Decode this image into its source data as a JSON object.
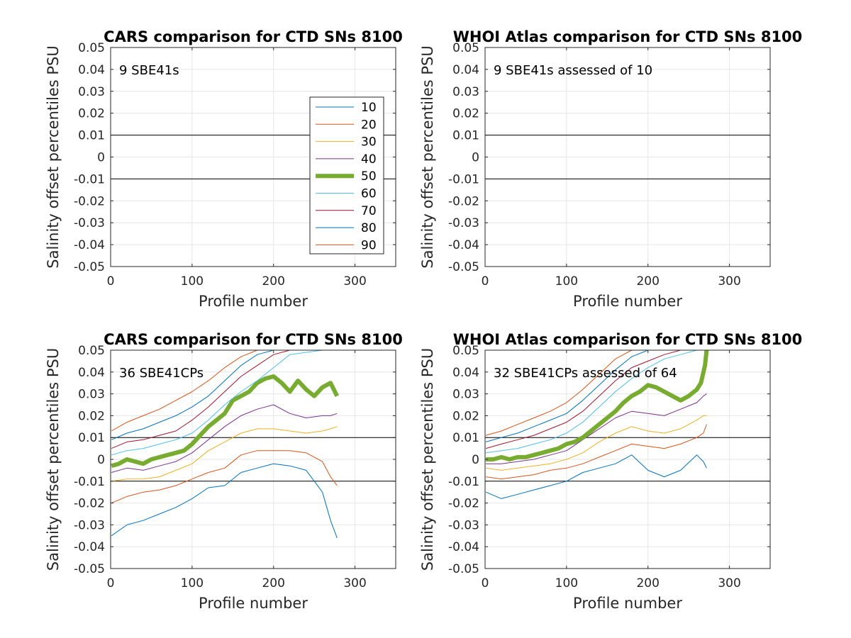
{
  "chart_data": [
    {
      "type": "line",
      "title": "CARS comparison for CTD SNs 8100",
      "xlabel": "Profile number",
      "ylabel": "Salinity offset percentiles PSU",
      "xlim": [
        0,
        350
      ],
      "ylim": [
        -0.05,
        0.05
      ],
      "xticks": [
        "0",
        "100",
        "200",
        "300"
      ],
      "yticks": [
        "-0.05",
        "-0.04",
        "-0.03",
        "-0.02",
        "-0.01",
        "0",
        "0.01",
        "0.02",
        "0.03",
        "0.04",
        "0.05"
      ],
      "grid": true,
      "reference_lines": [
        0.01,
        -0.01
      ],
      "annotation": "9 SBE41s",
      "legend": {
        "placement": "right",
        "entries": [
          "10",
          "20",
          "30",
          "40",
          "50",
          "60",
          "70",
          "80",
          "90"
        ]
      },
      "series": []
    },
    {
      "type": "line",
      "title": "WHOI Atlas comparison for CTD SNs 8100",
      "xlabel": "Profile number",
      "ylabel": "Salinity offset percentiles PSU",
      "xlim": [
        0,
        350
      ],
      "ylim": [
        -0.05,
        0.05
      ],
      "xticks": [
        "0",
        "100",
        "200",
        "300"
      ],
      "yticks": [
        "-0.05",
        "-0.04",
        "-0.03",
        "-0.02",
        "-0.01",
        "0",
        "0.01",
        "0.02",
        "0.03",
        "0.04",
        "0.05"
      ],
      "grid": true,
      "reference_lines": [
        0.01,
        -0.01
      ],
      "annotation": "9 SBE41s assessed of 10",
      "series": []
    },
    {
      "type": "line",
      "title": "CARS comparison for CTD SNs 8100",
      "xlabel": "Profile number",
      "ylabel": "Salinity offset percentiles PSU",
      "xlim": [
        0,
        350
      ],
      "ylim": [
        -0.05,
        0.05
      ],
      "xticks": [
        "0",
        "100",
        "200",
        "300"
      ],
      "yticks": [
        "-0.05",
        "-0.04",
        "-0.03",
        "-0.02",
        "-0.01",
        "0",
        "0.01",
        "0.02",
        "0.03",
        "0.04",
        "0.05"
      ],
      "grid": true,
      "reference_lines": [
        0.01,
        -0.01
      ],
      "annotation": "36 SBE41CPs",
      "series": [
        {
          "name": "10",
          "color": "#0072BD",
          "x": [
            1,
            20,
            40,
            60,
            80,
            100,
            120,
            140,
            160,
            180,
            200,
            220,
            240,
            260,
            270,
            278
          ],
          "values": [
            -0.035,
            -0.03,
            -0.028,
            -0.025,
            -0.022,
            -0.018,
            -0.013,
            -0.012,
            -0.006,
            -0.004,
            -0.002,
            -0.003,
            -0.005,
            -0.015,
            -0.028,
            -0.036
          ]
        },
        {
          "name": "20",
          "color": "#D95319",
          "x": [
            1,
            20,
            40,
            60,
            80,
            100,
            120,
            140,
            160,
            180,
            200,
            220,
            240,
            260,
            270,
            278
          ],
          "values": [
            -0.02,
            -0.017,
            -0.015,
            -0.014,
            -0.012,
            -0.009,
            -0.006,
            -0.004,
            0.002,
            0.004,
            0.004,
            0.004,
            0.003,
            -0.001,
            -0.008,
            -0.012
          ]
        },
        {
          "name": "30",
          "color": "#EDB120",
          "x": [
            1,
            20,
            40,
            60,
            80,
            100,
            120,
            140,
            160,
            180,
            200,
            220,
            240,
            260,
            270,
            278
          ],
          "values": [
            -0.01,
            -0.009,
            -0.009,
            -0.008,
            -0.005,
            -0.002,
            0.004,
            0.008,
            0.012,
            0.014,
            0.014,
            0.013,
            0.012,
            0.013,
            0.014,
            0.015
          ]
        },
        {
          "name": "40",
          "color": "#7E2F8E",
          "x": [
            1,
            20,
            40,
            60,
            80,
            100,
            120,
            140,
            160,
            180,
            200,
            220,
            240,
            260,
            270,
            278
          ],
          "values": [
            -0.006,
            -0.004,
            -0.005,
            -0.003,
            -0.001,
            0.003,
            0.009,
            0.015,
            0.02,
            0.023,
            0.025,
            0.021,
            0.019,
            0.02,
            0.02,
            0.021
          ]
        },
        {
          "name": "50",
          "color": "#77AC30",
          "x": [
            1,
            10,
            20,
            30,
            40,
            50,
            60,
            70,
            80,
            90,
            100,
            110,
            120,
            130,
            140,
            150,
            160,
            170,
            180,
            190,
            200,
            210,
            220,
            230,
            240,
            250,
            260,
            270,
            278
          ],
          "values": [
            -0.003,
            -0.002,
            0.0,
            -0.001,
            -0.002,
            0.0,
            0.001,
            0.002,
            0.003,
            0.004,
            0.007,
            0.011,
            0.015,
            0.018,
            0.021,
            0.027,
            0.029,
            0.031,
            0.035,
            0.037,
            0.038,
            0.035,
            0.031,
            0.036,
            0.032,
            0.029,
            0.033,
            0.035,
            0.029
          ]
        },
        {
          "name": "60",
          "color": "#4DBEEE",
          "x": [
            1,
            20,
            40,
            60,
            80,
            100,
            120,
            140,
            160,
            180,
            200,
            220,
            240,
            260,
            270,
            278
          ],
          "values": [
            0.002,
            0.004,
            0.005,
            0.007,
            0.009,
            0.012,
            0.018,
            0.025,
            0.031,
            0.036,
            0.042,
            0.048,
            0.049,
            0.05,
            0.05,
            0.05
          ]
        },
        {
          "name": "70",
          "color": "#A2142F",
          "x": [
            1,
            20,
            40,
            60,
            80,
            100,
            120,
            140,
            160,
            180,
            200,
            220,
            240,
            260,
            270,
            278
          ],
          "values": [
            0.005,
            0.008,
            0.009,
            0.011,
            0.013,
            0.018,
            0.024,
            0.031,
            0.038,
            0.043,
            0.048,
            0.05,
            0.05,
            0.05,
            0.05,
            0.05
          ]
        },
        {
          "name": "80",
          "color": "#0072BD",
          "x": [
            1,
            20,
            40,
            60,
            80,
            100,
            120,
            140,
            160,
            180,
            200,
            220,
            240,
            260,
            270,
            278
          ],
          "values": [
            0.009,
            0.012,
            0.014,
            0.017,
            0.02,
            0.024,
            0.029,
            0.036,
            0.043,
            0.048,
            0.05,
            0.05,
            0.05,
            0.05,
            0.05,
            0.05
          ]
        },
        {
          "name": "90",
          "color": "#D95319",
          "x": [
            1,
            20,
            40,
            60,
            80,
            100,
            120,
            140,
            160,
            180,
            200,
            220,
            240,
            260,
            270,
            278
          ],
          "values": [
            0.013,
            0.017,
            0.02,
            0.023,
            0.027,
            0.031,
            0.036,
            0.042,
            0.047,
            0.05,
            0.05,
            0.05,
            0.05,
            0.05,
            0.05,
            0.05
          ]
        }
      ]
    },
    {
      "type": "line",
      "title": "WHOI Atlas comparison for CTD SNs 8100",
      "xlabel": "Profile number",
      "ylabel": "Salinity offset percentiles PSU",
      "xlim": [
        0,
        350
      ],
      "ylim": [
        -0.05,
        0.05
      ],
      "xticks": [
        "0",
        "100",
        "200",
        "300"
      ],
      "yticks": [
        "-0.05",
        "-0.04",
        "-0.03",
        "-0.02",
        "-0.01",
        "0",
        "0.01",
        "0.02",
        "0.03",
        "0.04",
        "0.05"
      ],
      "grid": true,
      "reference_lines": [
        0.01,
        -0.01
      ],
      "annotation": "32 SBE41CPs assessed of 64",
      "series": [
        {
          "name": "10",
          "color": "#0072BD",
          "x": [
            1,
            20,
            40,
            60,
            80,
            100,
            120,
            140,
            160,
            180,
            200,
            220,
            240,
            260,
            268,
            272
          ],
          "values": [
            -0.015,
            -0.018,
            -0.016,
            -0.014,
            -0.012,
            -0.01,
            -0.006,
            -0.004,
            -0.002,
            0.002,
            -0.005,
            -0.008,
            -0.005,
            0.002,
            -0.001,
            -0.004
          ]
        },
        {
          "name": "20",
          "color": "#D95319",
          "x": [
            1,
            20,
            40,
            60,
            80,
            100,
            120,
            140,
            160,
            180,
            200,
            220,
            240,
            260,
            268,
            272
          ],
          "values": [
            -0.008,
            -0.009,
            -0.008,
            -0.007,
            -0.005,
            -0.004,
            -0.002,
            0.001,
            0.004,
            0.007,
            0.006,
            0.005,
            0.007,
            0.01,
            0.012,
            0.016
          ]
        },
        {
          "name": "30",
          "color": "#EDB120",
          "x": [
            1,
            20,
            40,
            60,
            80,
            100,
            120,
            140,
            160,
            180,
            200,
            220,
            240,
            260,
            268,
            272
          ],
          "values": [
            -0.004,
            -0.005,
            -0.004,
            -0.003,
            -0.002,
            0.0,
            0.003,
            0.008,
            0.012,
            0.015,
            0.013,
            0.012,
            0.014,
            0.018,
            0.02,
            0.02
          ]
        },
        {
          "name": "40",
          "color": "#7E2F8E",
          "x": [
            1,
            20,
            40,
            60,
            80,
            100,
            120,
            140,
            160,
            180,
            200,
            220,
            240,
            260,
            268,
            272
          ],
          "values": [
            -0.002,
            -0.002,
            -0.001,
            0.0,
            0.002,
            0.004,
            0.009,
            0.014,
            0.019,
            0.022,
            0.021,
            0.02,
            0.023,
            0.026,
            0.029,
            0.03
          ]
        },
        {
          "name": "50",
          "color": "#77AC30",
          "x": [
            1,
            10,
            20,
            30,
            40,
            50,
            60,
            70,
            80,
            90,
            100,
            110,
            120,
            130,
            140,
            150,
            160,
            170,
            180,
            190,
            200,
            210,
            220,
            230,
            240,
            250,
            260,
            265,
            270,
            272
          ],
          "values": [
            0.0,
            0.0,
            0.001,
            0.0,
            0.001,
            0.001,
            0.002,
            0.003,
            0.004,
            0.005,
            0.007,
            0.008,
            0.01,
            0.013,
            0.016,
            0.019,
            0.022,
            0.026,
            0.029,
            0.031,
            0.034,
            0.033,
            0.031,
            0.029,
            0.027,
            0.029,
            0.032,
            0.035,
            0.043,
            0.05
          ]
        },
        {
          "name": "60",
          "color": "#4DBEEE",
          "x": [
            1,
            20,
            40,
            60,
            80,
            100,
            120,
            140,
            160,
            180,
            200,
            220,
            240,
            260,
            268,
            272
          ],
          "values": [
            0.003,
            0.004,
            0.005,
            0.007,
            0.009,
            0.012,
            0.017,
            0.024,
            0.031,
            0.037,
            0.042,
            0.046,
            0.048,
            0.05,
            0.05,
            0.05
          ]
        },
        {
          "name": "70",
          "color": "#A2142F",
          "x": [
            1,
            20,
            40,
            60,
            80,
            100,
            120,
            140,
            160,
            180,
            200,
            220,
            240,
            260,
            268,
            272
          ],
          "values": [
            0.005,
            0.007,
            0.009,
            0.011,
            0.014,
            0.017,
            0.022,
            0.029,
            0.036,
            0.042,
            0.045,
            0.048,
            0.05,
            0.05,
            0.05,
            0.05
          ]
        },
        {
          "name": "80",
          "color": "#0072BD",
          "x": [
            1,
            20,
            40,
            60,
            80,
            100,
            120,
            140,
            160,
            180,
            200,
            220,
            240,
            260,
            268,
            272
          ],
          "values": [
            0.008,
            0.01,
            0.012,
            0.015,
            0.018,
            0.021,
            0.027,
            0.034,
            0.041,
            0.047,
            0.05,
            0.05,
            0.05,
            0.05,
            0.05,
            0.05
          ]
        },
        {
          "name": "90",
          "color": "#D95319",
          "x": [
            1,
            20,
            40,
            60,
            80,
            100,
            120,
            140,
            160,
            180,
            200,
            220,
            240,
            260,
            268,
            272
          ],
          "values": [
            0.011,
            0.013,
            0.016,
            0.019,
            0.022,
            0.026,
            0.032,
            0.039,
            0.046,
            0.05,
            0.05,
            0.05,
            0.05,
            0.05,
            0.05,
            0.05
          ]
        }
      ]
    }
  ]
}
